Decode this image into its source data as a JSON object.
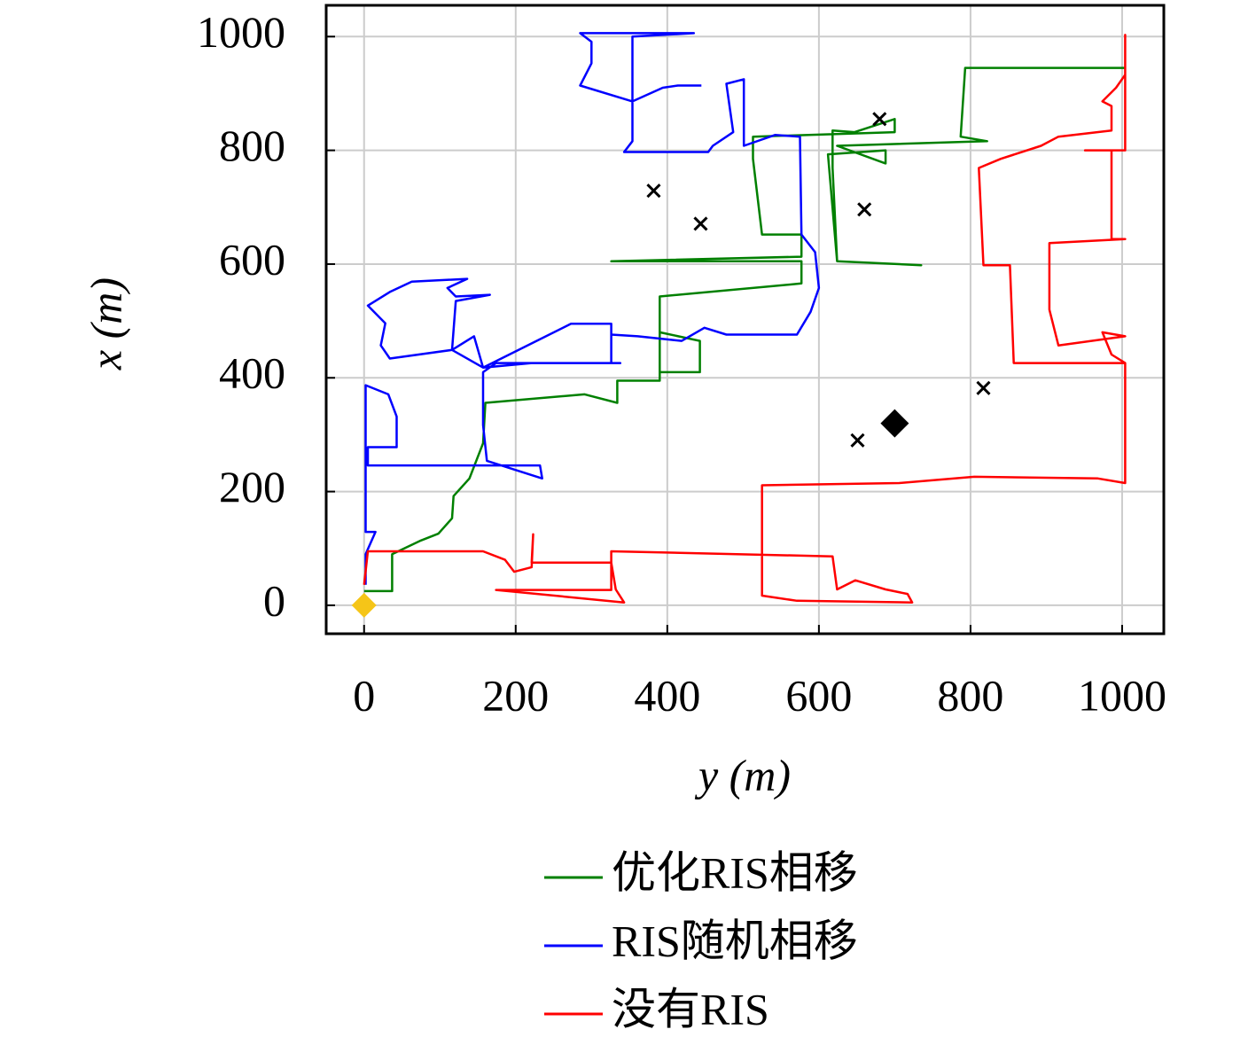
{
  "chart_data": {
    "type": "line",
    "x_label": "y (m)",
    "y_label": "x (m)",
    "xlim": [
      -50,
      1055
    ],
    "ylim": [
      -50,
      1055
    ],
    "xticks": [
      0,
      200,
      400,
      600,
      800,
      1000
    ],
    "yticks": [
      0,
      200,
      400,
      600,
      800,
      1000
    ],
    "grid": true,
    "series": [
      {
        "name": "优化RIS相移",
        "color": "#008000",
        "x": [
          0,
          37,
          37,
          75,
          98,
          116,
          118,
          139,
          157,
          160,
          291,
          334,
          334,
          390,
          390,
          443,
          443,
          390,
          390,
          577,
          577,
          326,
          577,
          577,
          525,
          513,
          513,
          700,
          700,
          647,
          618,
          618,
          624,
          735,
          624,
          612,
          688,
          688,
          624,
          822,
          787,
          793,
          1004
        ],
        "values": [
          25,
          25,
          90,
          114,
          126,
          153,
          192,
          223,
          285,
          356,
          371,
          356,
          395,
          395,
          480,
          465,
          410,
          410,
          543,
          566,
          605,
          605,
          613,
          652,
          652,
          785,
          824,
          832,
          855,
          832,
          835,
          769,
          605,
          598,
          605,
          793,
          800,
          777,
          808,
          816,
          824,
          945,
          945
        ]
      },
      {
        "name": "RIS随机相移",
        "color": "#0000ff",
        "x": [
          2,
          2,
          15,
          2,
          2,
          32,
          43,
          43,
          5,
          5,
          232,
          235,
          162,
          157,
          157,
          174,
          338,
          221,
          157,
          145,
          116,
          34,
          22,
          28,
          5,
          34,
          63,
          136,
          110,
          121,
          166,
          121,
          116,
          157,
          273,
          326,
          326,
          326,
          361,
          419,
          449,
          478,
          571,
          589,
          600,
          595,
          577,
          575,
          542,
          501,
          501,
          478,
          487,
          460,
          454,
          343,
          354,
          354,
          435,
          285,
          300,
          300,
          285,
          354,
          394,
          414,
          445
        ],
        "values": [
          36,
          90,
          129,
          129,
          387,
          371,
          332,
          278,
          278,
          246,
          246,
          223,
          254,
          317,
          410,
          426,
          426,
          426,
          418,
          473,
          449,
          434,
          457,
          496,
          527,
          551,
          569,
          574,
          558,
          543,
          546,
          535,
          449,
          418,
          495,
          495,
          426,
          476,
          473,
          465,
          488,
          476,
          476,
          516,
          558,
          621,
          652,
          824,
          827,
          808,
          925,
          917,
          832,
          808,
          797,
          797,
          816,
          1000,
          1006,
          1006,
          991,
          953,
          914,
          886,
          910,
          914,
          914
        ]
      },
      {
        "name": "没有RIS",
        "color": "#ff0000",
        "x": [
          0,
          5,
          157,
          186,
          198,
          221,
          223,
          221,
          326,
          332,
          343,
          174,
          326,
          326,
          618,
          624,
          648,
          688,
          717,
          723,
          571,
          525,
          525,
          706,
          805,
          968,
          1004,
          1004,
          857,
          852,
          817,
          811,
          840,
          893,
          916,
          986,
          986,
          974,
          992,
          1004,
          1004,
          1004,
          951,
          986,
          986,
          1004,
          904,
          904,
          916,
          1004,
          974,
          986,
          1004
        ],
        "values": [
          36,
          95,
          95,
          80,
          59,
          67,
          125,
          75,
          75,
          28,
          5,
          27,
          27,
          95,
          86,
          28,
          44,
          28,
          20,
          5,
          8,
          17,
          211,
          215,
          226,
          223,
          215,
          426,
          426,
          598,
          598,
          769,
          785,
          808,
          824,
          835,
          878,
          886,
          910,
          933,
          1003,
          800,
          800,
          800,
          644,
          644,
          637,
          520,
          457,
          473,
          480,
          441,
          426
        ]
      }
    ],
    "users": {
      "color": "#000000",
      "x": [
        382,
        444,
        660,
        680,
        817,
        651
      ],
      "values": [
        729,
        671,
        696,
        855,
        382,
        290
      ]
    },
    "ris": {
      "color": "#000000",
      "x": [
        700
      ],
      "values": [
        320
      ]
    },
    "start": {
      "color": "#f5c518",
      "x": [
        0
      ],
      "values": [
        0
      ]
    }
  }
}
